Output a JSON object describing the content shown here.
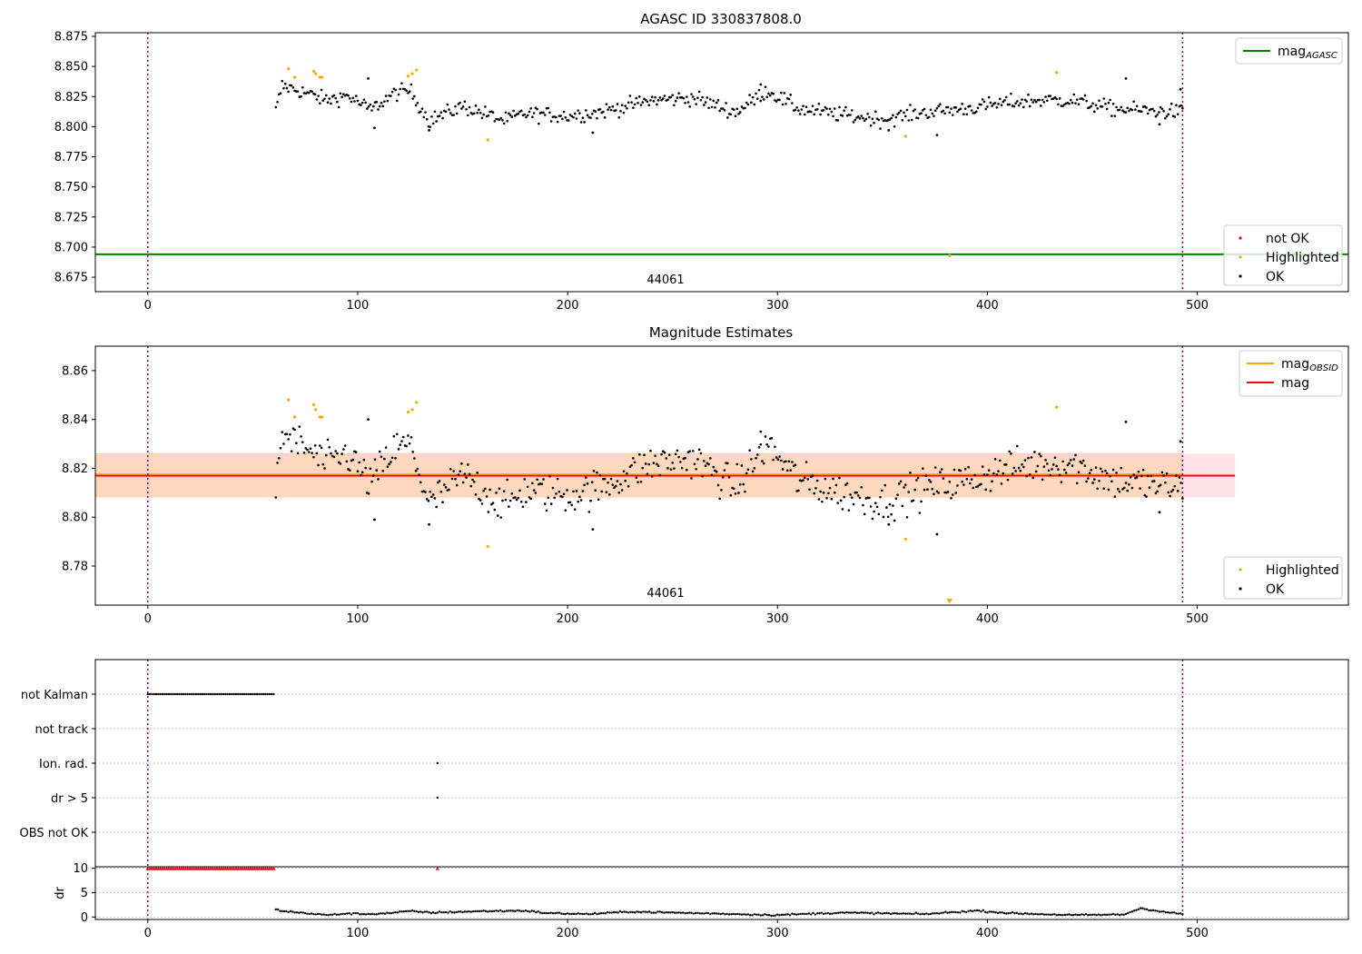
{
  "chart_data": [
    {
      "type": "scatter",
      "title": "AGASC ID 330837808.0",
      "annotation": "44061",
      "xlim": [
        -25,
        572
      ],
      "ylim": [
        8.663,
        8.878
      ],
      "xticks": [
        0,
        100,
        200,
        300,
        400,
        500
      ],
      "yticks": [
        8.675,
        8.7,
        8.725,
        8.75,
        8.775,
        8.8,
        8.825,
        8.85,
        8.875
      ],
      "ytick_decimals": 3,
      "vlines": [
        0,
        493
      ],
      "hline": {
        "y": 8.694,
        "color": "#008000"
      },
      "legend_upper": [
        {
          "label": "mag",
          "sub": "AGASC",
          "kind": "line",
          "color": "#008000"
        }
      ],
      "legend_lower": [
        {
          "label": "not OK",
          "kind": "dot",
          "color": "#ff0000"
        },
        {
          "label": "Highlighted",
          "kind": "dot",
          "color": "#ffa500"
        },
        {
          "label": "OK",
          "kind": "dot",
          "color": "#000000"
        }
      ],
      "highlighted_points": [
        [
          67,
          8.848
        ],
        [
          70,
          8.841
        ],
        [
          79,
          8.846
        ],
        [
          80,
          8.844
        ],
        [
          82,
          8.841
        ],
        [
          83,
          8.841
        ],
        [
          124,
          8.842
        ],
        [
          126,
          8.844
        ],
        [
          128,
          8.847
        ],
        [
          162,
          8.789
        ],
        [
          361,
          8.792
        ],
        [
          382,
          8.693
        ],
        [
          433,
          8.845
        ]
      ],
      "ok_series": {
        "x_start": 61,
        "x_end": 493,
        "x_step": 0.75,
        "segments": [
          [
            61,
            8.813
          ],
          [
            64,
            8.834
          ],
          [
            72,
            8.83
          ],
          [
            85,
            8.822
          ],
          [
            95,
            8.826
          ],
          [
            106,
            8.814
          ],
          [
            118,
            8.828
          ],
          [
            125,
            8.83
          ],
          [
            134,
            8.805
          ],
          [
            150,
            8.817
          ],
          [
            170,
            8.805
          ],
          [
            180,
            8.811
          ],
          [
            200,
            8.809
          ],
          [
            215,
            8.812
          ],
          [
            240,
            8.822
          ],
          [
            260,
            8.824
          ],
          [
            280,
            8.812
          ],
          [
            295,
            8.83
          ],
          [
            310,
            8.815
          ],
          [
            330,
            8.81
          ],
          [
            350,
            8.806
          ],
          [
            370,
            8.812
          ],
          [
            390,
            8.815
          ],
          [
            410,
            8.82
          ],
          [
            425,
            8.822
          ],
          [
            440,
            8.822
          ],
          [
            460,
            8.815
          ],
          [
            480,
            8.813
          ],
          [
            493,
            8.812
          ]
        ],
        "outliers": [
          [
            105,
            8.84
          ],
          [
            134,
            8.797
          ],
          [
            108,
            8.799
          ],
          [
            212,
            8.795
          ],
          [
            292,
            8.835
          ],
          [
            353,
            8.797
          ],
          [
            376,
            8.793
          ],
          [
            466,
            8.84
          ],
          [
            482,
            8.802
          ],
          [
            492,
            8.831
          ]
        ]
      }
    },
    {
      "type": "scatter",
      "title": "Magnitude Estimates",
      "annotation": "44061",
      "xlim": [
        -25,
        572
      ],
      "ylim": [
        8.764,
        8.87
      ],
      "xticks": [
        0,
        100,
        200,
        300,
        400,
        500
      ],
      "yticks": [
        8.78,
        8.8,
        8.82,
        8.84,
        8.86
      ],
      "ytick_decimals": 2,
      "vlines": [
        0,
        493
      ],
      "mag_line": {
        "y": 8.817,
        "color": "#ff0000"
      },
      "band_mag": {
        "lo": 8.808,
        "hi": 8.826,
        "x_from": -25,
        "x_to": 518,
        "color": "#ffc0cb"
      },
      "band_obsid": {
        "lo": 8.808,
        "hi": 8.826,
        "x_from": -25,
        "x_to": 493,
        "color": "#ffa500"
      },
      "legend_upper": [
        {
          "label": "mag",
          "sub": "OBSID",
          "kind": "line",
          "color": "#ffa500"
        },
        {
          "label": "mag",
          "kind": "line",
          "color": "#ff0000"
        }
      ],
      "legend_lower": [
        {
          "label": "Highlighted",
          "kind": "dot",
          "color": "#ffa500"
        },
        {
          "label": "OK",
          "kind": "dot",
          "color": "#000000"
        }
      ],
      "highlighted_points": [
        [
          67,
          8.848
        ],
        [
          70,
          8.841
        ],
        [
          79,
          8.846
        ],
        [
          80,
          8.844
        ],
        [
          82,
          8.841
        ],
        [
          83,
          8.841
        ],
        [
          124,
          8.843
        ],
        [
          126,
          8.844
        ],
        [
          128,
          8.847
        ],
        [
          162,
          8.788
        ],
        [
          361,
          8.791
        ],
        [
          433,
          8.845
        ]
      ],
      "offscale_marker": {
        "x": 382,
        "color": "#ffa500"
      },
      "ok_series": {
        "x_start": 61,
        "x_end": 493,
        "x_step": 0.75,
        "segments": [
          [
            61,
            8.813
          ],
          [
            64,
            8.834
          ],
          [
            72,
            8.83
          ],
          [
            85,
            8.822
          ],
          [
            95,
            8.826
          ],
          [
            106,
            8.814
          ],
          [
            118,
            8.828
          ],
          [
            125,
            8.83
          ],
          [
            134,
            8.805
          ],
          [
            150,
            8.817
          ],
          [
            170,
            8.805
          ],
          [
            180,
            8.811
          ],
          [
            200,
            8.809
          ],
          [
            215,
            8.812
          ],
          [
            240,
            8.822
          ],
          [
            260,
            8.824
          ],
          [
            280,
            8.812
          ],
          [
            295,
            8.83
          ],
          [
            310,
            8.815
          ],
          [
            330,
            8.81
          ],
          [
            350,
            8.806
          ],
          [
            370,
            8.812
          ],
          [
            390,
            8.815
          ],
          [
            410,
            8.82
          ],
          [
            425,
            8.822
          ],
          [
            440,
            8.822
          ],
          [
            460,
            8.815
          ],
          [
            480,
            8.813
          ],
          [
            493,
            8.812
          ]
        ],
        "outliers": [
          [
            105,
            8.84
          ],
          [
            134,
            8.797
          ],
          [
            108,
            8.799
          ],
          [
            212,
            8.795
          ],
          [
            292,
            8.835
          ],
          [
            353,
            8.797
          ],
          [
            376,
            8.793
          ],
          [
            466,
            8.839
          ],
          [
            482,
            8.802
          ],
          [
            492,
            8.831
          ]
        ]
      }
    },
    {
      "type": "scatter",
      "title": "",
      "xlim": [
        -25,
        572
      ],
      "xticks": [
        0,
        100,
        200,
        300,
        400,
        500
      ],
      "vlines": [
        0,
        493
      ],
      "flag_rows": [
        "not Kalman",
        "not track",
        "Ion. rad.",
        "dr > 5",
        "OBS not OK"
      ],
      "flag_points": {
        "not Kalman": {
          "from": 0,
          "to": 60,
          "step": 1
        },
        "Ion. rad.": [
          138
        ],
        "dr > 5": [
          138
        ]
      },
      "dr_panel": {
        "ylabel": "dr",
        "ylim": [
          -0.5,
          10.3
        ],
        "yticks": [
          0,
          5,
          10
        ],
        "clipped_points": {
          "from": 0,
          "to": 60,
          "step": 1,
          "extra": [
            138
          ],
          "value": 10,
          "color": "#ff0000"
        },
        "series": {
          "x_start": 61,
          "x_end": 493,
          "x_step": 1,
          "segments": [
            [
              61,
              1.5
            ],
            [
              65,
              1.2
            ],
            [
              75,
              0.8
            ],
            [
              85,
              0.4
            ],
            [
              95,
              0.7
            ],
            [
              105,
              0.6
            ],
            [
              115,
              0.8
            ],
            [
              125,
              1.2
            ],
            [
              135,
              0.9
            ],
            [
              160,
              1.2
            ],
            [
              180,
              1.3
            ],
            [
              190,
              0.8
            ],
            [
              210,
              0.6
            ],
            [
              230,
              1.1
            ],
            [
              260,
              0.8
            ],
            [
              300,
              0.4
            ],
            [
              330,
              0.9
            ],
            [
              370,
              0.6
            ],
            [
              395,
              1.3
            ],
            [
              410,
              0.8
            ],
            [
              440,
              0.4
            ],
            [
              465,
              0.5
            ],
            [
              473,
              1.8
            ],
            [
              485,
              1.0
            ],
            [
              493,
              0.6
            ]
          ]
        }
      }
    }
  ]
}
